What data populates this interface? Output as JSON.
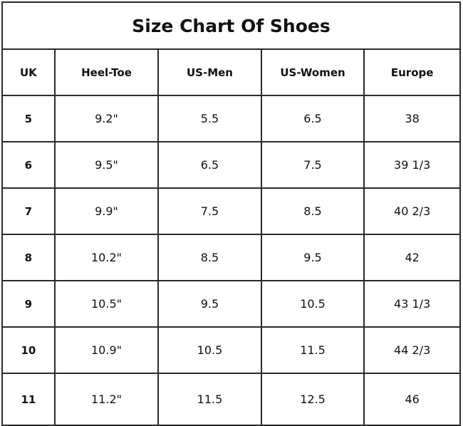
{
  "title": "Size Chart Of Shoes",
  "columns": [
    "UK",
    "Heel-Toe",
    "US-Men",
    "US-Women",
    "Europe"
  ],
  "rows": [
    [
      "5",
      "9.2\"",
      "5.5",
      "6.5",
      "38"
    ],
    [
      "6",
      "9.5\"",
      "6.5",
      "7.5",
      "39 1/3"
    ],
    [
      "7",
      "9.9\"",
      "7.5",
      "8.5",
      "40 2/3"
    ],
    [
      "8",
      "10.2\"",
      "8.5",
      "9.5",
      "42"
    ],
    [
      "9",
      "10.5\"",
      "9.5",
      "10.5",
      "43 1/3"
    ],
    [
      "10",
      "10.9\"",
      "10.5",
      "11.5",
      "44 2/3"
    ],
    [
      "11",
      "11.2\"",
      "11.5",
      "12.5",
      "46"
    ]
  ]
}
